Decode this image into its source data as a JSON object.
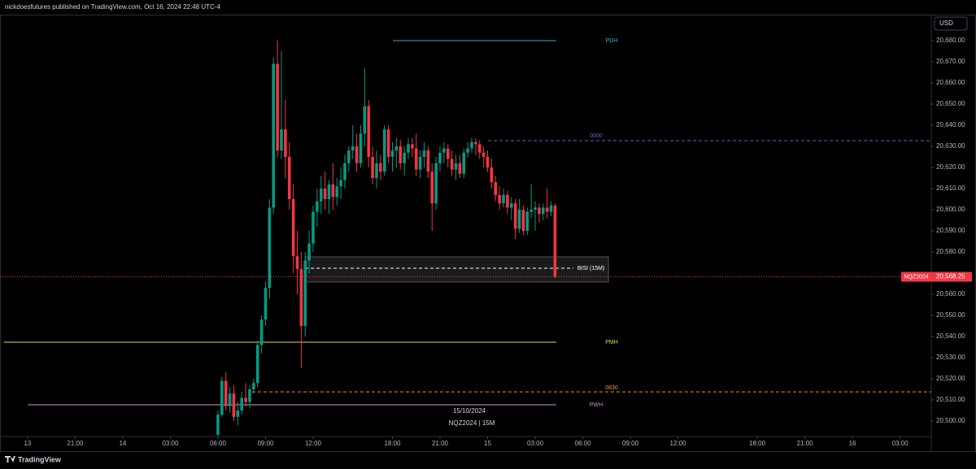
{
  "header": {
    "text": "nickdoesfutures published on TradingView.com, Oct 16, 2024 22:48 UTC-4"
  },
  "footer": {
    "brand": "TradingView"
  },
  "currency_button": "USD",
  "chart_data": {
    "type": "candlestick",
    "symbol_watermark": "NQZ2024 | 15M",
    "date_label": "15/10/2024",
    "up_color": "#089981",
    "down_color": "#f23645",
    "xlim": [
      -1.74,
      56.97
    ],
    "ylim": [
      20492.7,
      20692.3
    ],
    "xticks": [
      {
        "value": 0,
        "label": "13"
      },
      {
        "value": 3,
        "label": "21:00"
      },
      {
        "value": 6,
        "label": "14"
      },
      {
        "value": 9,
        "label": "03:00"
      },
      {
        "value": 12,
        "label": "06:00"
      },
      {
        "value": 15,
        "label": "09:00"
      },
      {
        "value": 18,
        "label": "12:00"
      },
      {
        "value": 23,
        "label": "18:00"
      },
      {
        "value": 26,
        "label": "21:00"
      },
      {
        "value": 29,
        "label": "15"
      },
      {
        "value": 32,
        "label": "03:00"
      },
      {
        "value": 35,
        "label": "06:00"
      },
      {
        "value": 38,
        "label": "09:00"
      },
      {
        "value": 41,
        "label": "12:00"
      },
      {
        "value": 46,
        "label": "18:00"
      },
      {
        "value": 49,
        "label": "21:00"
      },
      {
        "value": 52,
        "label": "16"
      },
      {
        "value": 55,
        "label": "03:00"
      }
    ],
    "yticks": [
      {
        "value": 20500,
        "label": "20,500.00"
      },
      {
        "value": 20510,
        "label": "20,510.00"
      },
      {
        "value": 20520,
        "label": "20,520.00"
      },
      {
        "value": 20530,
        "label": "20,530.00"
      },
      {
        "value": 20540,
        "label": "20,540.00"
      },
      {
        "value": 20550,
        "label": "20,550.00"
      },
      {
        "value": 20560,
        "label": "20,560.00"
      },
      {
        "value": 20580,
        "label": "20,580.00"
      },
      {
        "value": 20590,
        "label": "20,590.00"
      },
      {
        "value": 20600,
        "label": "20,600.00"
      },
      {
        "value": 20610,
        "label": "20,610.00"
      },
      {
        "value": 20620,
        "label": "20,620.00"
      },
      {
        "value": 20630,
        "label": "20,630.00"
      },
      {
        "value": 20640,
        "label": "20,640.00"
      },
      {
        "value": 20650,
        "label": "20,650.00"
      },
      {
        "value": 20660,
        "label": "20,660.00"
      },
      {
        "value": 20670,
        "label": "20,670.00"
      },
      {
        "value": 20680,
        "label": "20,680.00"
      }
    ],
    "x": [
      12,
      12.25,
      12.5,
      12.75,
      13,
      13.25,
      13.5,
      13.75,
      14,
      14.25,
      14.5,
      14.75,
      15,
      15.25,
      15.5,
      15.75,
      16,
      16.25,
      16.5,
      16.75,
      17,
      17.25,
      17.5,
      17.75,
      18,
      18.25,
      18.5,
      18.75,
      19,
      19.25,
      19.5,
      19.75,
      20,
      20.25,
      20.5,
      20.75,
      21,
      21.25,
      21.5,
      21.75,
      22,
      22.25,
      22.5,
      22.75,
      23,
      23.25,
      23.5,
      23.75,
      24,
      24.25,
      24.5,
      24.75,
      25,
      25.25,
      25.5,
      25.75,
      26,
      26.25,
      26.5,
      26.75,
      27,
      27.25,
      27.5,
      27.75,
      28,
      28.25,
      28.5,
      28.75,
      29,
      29.25,
      29.5,
      29.75,
      30,
      30.25,
      30.5,
      30.75,
      31,
      31.25,
      31.5,
      31.75,
      32,
      32.25,
      32.5,
      32.75,
      33,
      33.25
    ],
    "open": [
      20493.5,
      20503,
      20519,
      20507,
      20513,
      20502,
      20505,
      20511,
      20509,
      20515,
      20518,
      20536,
      20548,
      20563,
      20601,
      20669,
      20628,
      20638,
      20625,
      20605,
      20578,
      20572,
      20545,
      20576,
      20584,
      20599,
      20604,
      20610,
      20605,
      20612,
      20606,
      20611,
      20614,
      20622,
      20628,
      20630,
      20622,
      20636,
      20649,
      20625,
      20615,
      20622,
      20618,
      20638,
      20625,
      20628,
      20630,
      20622,
      20627,
      20631,
      20629,
      20619,
      20625,
      20628,
      20618,
      20603,
      20622,
      20627,
      20629,
      20624,
      20619,
      20622,
      20617,
      20627,
      20629,
      20632,
      20631,
      20627,
      20625,
      20620,
      20613,
      20607,
      20603,
      20607,
      20601,
      20603,
      20591,
      20600,
      20590,
      20599,
      20600,
      20601,
      20598,
      20601,
      20599,
      20602
    ],
    "high": [
      20505,
      20521,
      20523,
      20516,
      20517,
      20509,
      20514,
      20518,
      20517,
      20520,
      20538,
      20550,
      20566,
      20605,
      20672,
      20680,
      20675,
      20652,
      20632,
      20612,
      20590,
      20580,
      20580,
      20590,
      20602,
      20610,
      20616,
      20618,
      20614,
      20622,
      20615,
      20620,
      20626,
      20630,
      20640,
      20636,
      20640,
      20667,
      20652,
      20630,
      20628,
      20626,
      20640,
      20640,
      20632,
      20634,
      20633,
      20630,
      20634,
      20634,
      20636,
      20628,
      20632,
      20630,
      20622,
      20625,
      20630,
      20632,
      20631,
      20628,
      20626,
      20626,
      20629,
      20632,
      20634,
      20634,
      20633,
      20630,
      20628,
      20624,
      20616,
      20611,
      20610,
      20609,
      20606,
      20605,
      20605,
      20602,
      20601,
      20612,
      20604,
      20603,
      20603,
      20610,
      20604,
      20603
    ],
    "low": [
      20493,
      20502,
      20505,
      20504,
      20500,
      20498,
      20503,
      20507,
      20506,
      20513,
      20516,
      20532,
      20545,
      20558,
      20598,
      20625,
      20624,
      20615,
      20600,
      20570,
      20560,
      20525,
      20540,
      20570,
      20580,
      20592,
      20598,
      20600,
      20598,
      20600,
      20602,
      20605,
      20610,
      20618,
      20624,
      20618,
      20620,
      20630,
      20620,
      20612,
      20610,
      20614,
      20616,
      20622,
      20618,
      20620,
      20619,
      20616,
      20624,
      20625,
      20616,
      20615,
      20620,
      20615,
      20590,
      20600,
      20618,
      20622,
      20620,
      20616,
      20614,
      20615,
      20615,
      20625,
      20627,
      20626,
      20624,
      20620,
      20618,
      20610,
      20604,
      20600,
      20601,
      20598,
      20595,
      20586,
      20589,
      20588,
      20588,
      20596,
      20590,
      20594,
      20595,
      20596,
      20597,
      20567.75
    ],
    "close": [
      20503,
      20519,
      20507,
      20513,
      20502,
      20505,
      20511,
      20509,
      20515,
      20518,
      20536,
      20548,
      20563,
      20601,
      20669,
      20628,
      20638,
      20625,
      20605,
      20578,
      20572,
      20545,
      20576,
      20584,
      20599,
      20604,
      20610,
      20605,
      20612,
      20606,
      20611,
      20614,
      20622,
      20628,
      20630,
      20622,
      20636,
      20649,
      20625,
      20615,
      20622,
      20618,
      20638,
      20625,
      20628,
      20630,
      20622,
      20627,
      20631,
      20629,
      20619,
      20625,
      20628,
      20618,
      20603,
      20622,
      20627,
      20629,
      20624,
      20619,
      20622,
      20617,
      20627,
      20629,
      20632,
      20631,
      20627,
      20625,
      20620,
      20613,
      20607,
      20603,
      20607,
      20601,
      20603,
      20591,
      20600,
      20590,
      20599,
      20600,
      20601,
      20598,
      20601,
      20599,
      20602,
      20568.25
    ],
    "last_price": {
      "symbol": "NQZ2024",
      "value": 20568.25,
      "label": "20,568.25",
      "color": "#f23645"
    },
    "levels": [
      {
        "name": "PDH",
        "value": 20680,
        "x": [
          23.03,
          33.33
        ],
        "color": "#2ab3c6",
        "dashed": false
      },
      {
        "name": "0000",
        "value": 20632.7,
        "x": [
          29.03,
          56.97
        ],
        "color": "#7e57c2",
        "dashed": true
      },
      {
        "name": "PMH",
        "value": 20537.3,
        "x": [
          -1.49,
          33.33
        ],
        "color": "#e8d44d",
        "dashed": false
      },
      {
        "name": "0830",
        "value": 20513.8,
        "x": [
          14.15,
          56.97
        ],
        "color": "#f7931a",
        "dashed": true
      },
      {
        "name": "PWH",
        "value": 20507.7,
        "x": [
          0,
          33.33
        ],
        "color": "#ce93d8",
        "dashed": false
      }
    ],
    "zone": {
      "name": "BISI (15M)",
      "top": 20577.7,
      "bottom": 20565.8,
      "mid": 20572.3,
      "x": [
        17.49,
        36.62
      ],
      "mid_x_end": 34.41
    }
  }
}
